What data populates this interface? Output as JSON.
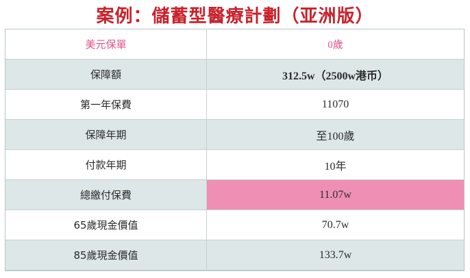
{
  "title": "案例：儲蓄型醫療計劃（亚洲版）",
  "table": {
    "header": {
      "label": "美元保單",
      "value": "0歲"
    },
    "rows": [
      {
        "label": "保障額",
        "value": "312.5w（2500w港币）"
      },
      {
        "label": "第一年保費",
        "value": "11070"
      },
      {
        "label": "保障年期",
        "value": "至100歲"
      },
      {
        "label": "付款年期",
        "value": "10年"
      },
      {
        "label": "總繳付保費",
        "value": "11.07w"
      },
      {
        "label": "65歲現金價值",
        "value": "70.7w"
      },
      {
        "label": "85歲現金價值",
        "value": "133.7w"
      }
    ]
  },
  "colors": {
    "title": "#c8222b",
    "header_text": "#e0528b",
    "row_stripe": "#dde7e8",
    "highlight": "#ef8fb4"
  }
}
